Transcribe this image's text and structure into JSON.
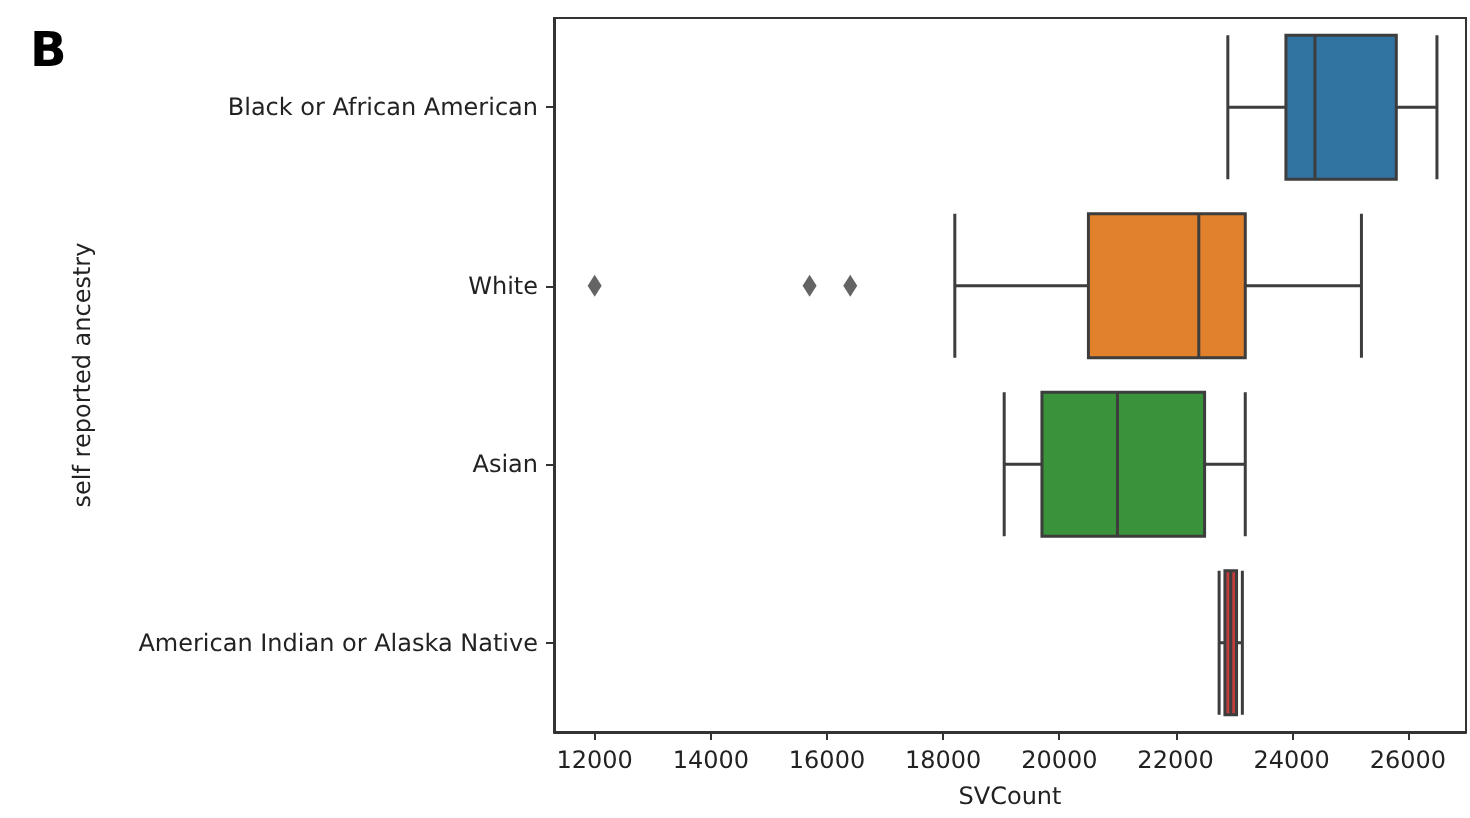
{
  "chart_data": {
    "type": "box",
    "title": "B",
    "xlabel": "SVCount",
    "ylabel": "self reported ancestry",
    "orientation": "horizontal",
    "categories": [
      "Black or African American",
      "White",
      "Asian",
      "American Indian or Alaska Native"
    ],
    "colors": [
      "#3274a1",
      "#e1812c",
      "#3a923a",
      "#c03d3e"
    ],
    "boxes": [
      {
        "low": 22900,
        "q1": 23900,
        "median": 24400,
        "q3": 25800,
        "high": 26500
      },
      {
        "low": 18200,
        "q1": 20500,
        "median": 22400,
        "q3": 23200,
        "high": 25200,
        "outliers": [
          12000,
          15700,
          16400
        ]
      },
      {
        "low": 19050,
        "q1": 19700,
        "median": 21000,
        "q3": 22500,
        "high": 23200
      },
      {
        "low": 22750,
        "q1": 22850,
        "median": 22950,
        "q3": 23050,
        "high": 23150
      }
    ],
    "xlim": [
      11300,
      27000
    ],
    "xticks": [
      12000,
      14000,
      16000,
      18000,
      20000,
      22000,
      24000,
      26000
    ],
    "grid": false,
    "marker": "diamond"
  }
}
